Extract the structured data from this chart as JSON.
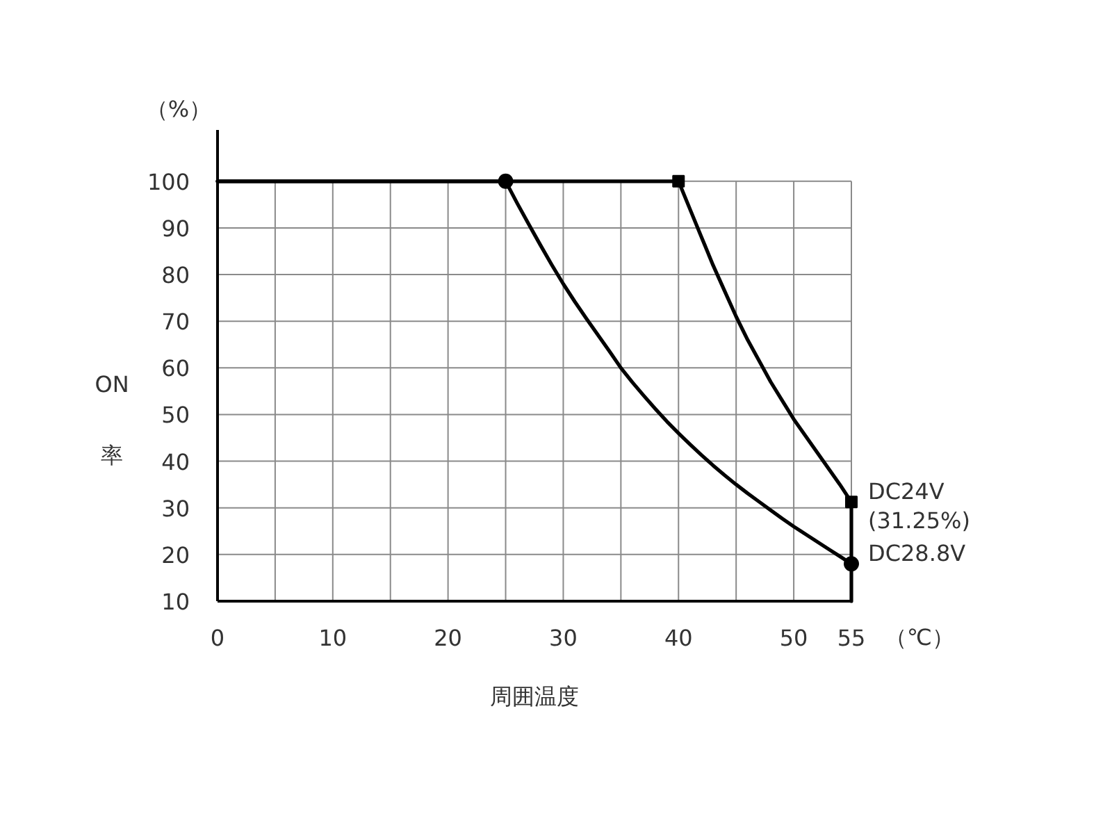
{
  "chart_data": {
    "type": "line",
    "xlabel": "周囲温度",
    "ylabel": "ON\n率",
    "xlim": [
      0,
      55
    ],
    "ylim": [
      10,
      111
    ],
    "xticks": [
      0,
      {
        "value": 5,
        "label": null
      },
      10,
      {
        "value": 15,
        "label": null
      },
      20,
      {
        "value": 25,
        "label": null
      },
      30,
      {
        "value": 35,
        "label": null
      },
      40,
      {
        "value": 45,
        "label": null
      },
      50,
      55
    ],
    "yticks": [
      10,
      20,
      30,
      40,
      50,
      60,
      70,
      80,
      90,
      100
    ],
    "grid": true,
    "line_style": "solid",
    "series": [
      {
        "color": "#000000",
        "x": [
          0,
          40,
          41,
          42,
          43,
          44,
          45,
          46,
          47,
          48,
          49,
          50,
          51,
          52,
          53,
          54,
          55,
          55
        ],
        "values": [
          100,
          100,
          94,
          88,
          82,
          76.5,
          71,
          66,
          61.5,
          57,
          53,
          49,
          45.5,
          42,
          38.5,
          35,
          31.25,
          10
        ]
      },
      {
        "color": "#000000",
        "x": [
          0,
          25,
          26,
          27,
          28,
          29,
          30,
          31,
          32,
          33,
          34,
          35,
          36,
          37,
          38,
          39,
          40,
          41,
          42,
          43,
          44,
          45,
          46,
          47,
          48,
          49,
          50,
          51,
          52,
          53,
          54,
          55
        ],
        "values": [
          100,
          100,
          95.3,
          90.8,
          86.4,
          82.1,
          78,
          74.2,
          70.6,
          67.1,
          63.6,
          60,
          56.9,
          54,
          51.2,
          48.5,
          46,
          43.6,
          41.3,
          39.1,
          37,
          35,
          33.1,
          31.3,
          29.5,
          27.7,
          26,
          24.4,
          22.8,
          21.2,
          19.6,
          18
        ]
      },
      {
        "type": "scatter",
        "color": "#000000",
        "marker": "square",
        "x": [
          40,
          55
        ],
        "values": [
          100,
          31.25
        ]
      },
      {
        "type": "scatter",
        "color": "#000000",
        "marker": "circle",
        "x": [
          25,
          55
        ],
        "values": [
          100,
          18
        ]
      }
    ],
    "annotations": [
      "（%）",
      "（℃）",
      {
        "text": "DC24V\n(31.25%)",
        "x": 55,
        "y": 31.25
      },
      {
        "text": "DC28.8V",
        "x": 55,
        "y": 18
      }
    ]
  }
}
